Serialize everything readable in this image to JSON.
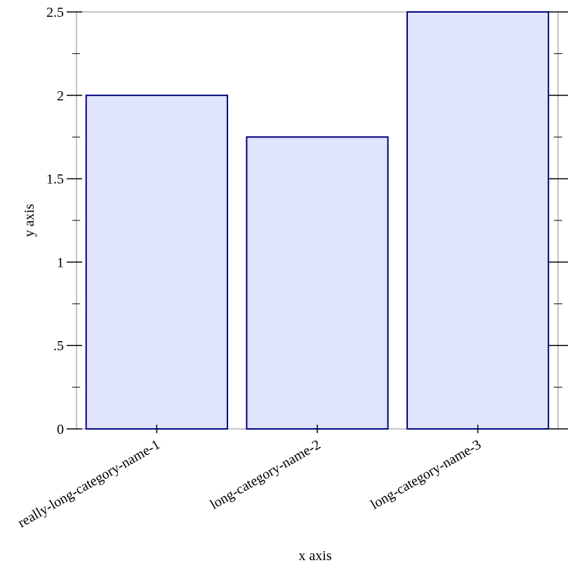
{
  "chart_data": {
    "type": "bar",
    "x_label": "x axis",
    "y_label": "y axis",
    "categories": [
      "really-long-category-name-1",
      "long-category-name-2",
      "long-category-name-3"
    ],
    "values": [
      2,
      1.75,
      2.5
    ],
    "color": "#e0e4fc",
    "edge_color": "#000080",
    "ylim": [
      0,
      2.5
    ],
    "yticks": [
      0,
      {
        "value": 0.5,
        "label": ".5"
      },
      1,
      1.5,
      2,
      2.5
    ],
    "yminorticks": [
      0.25,
      0.75,
      1.25,
      1.75,
      2.25
    ]
  }
}
